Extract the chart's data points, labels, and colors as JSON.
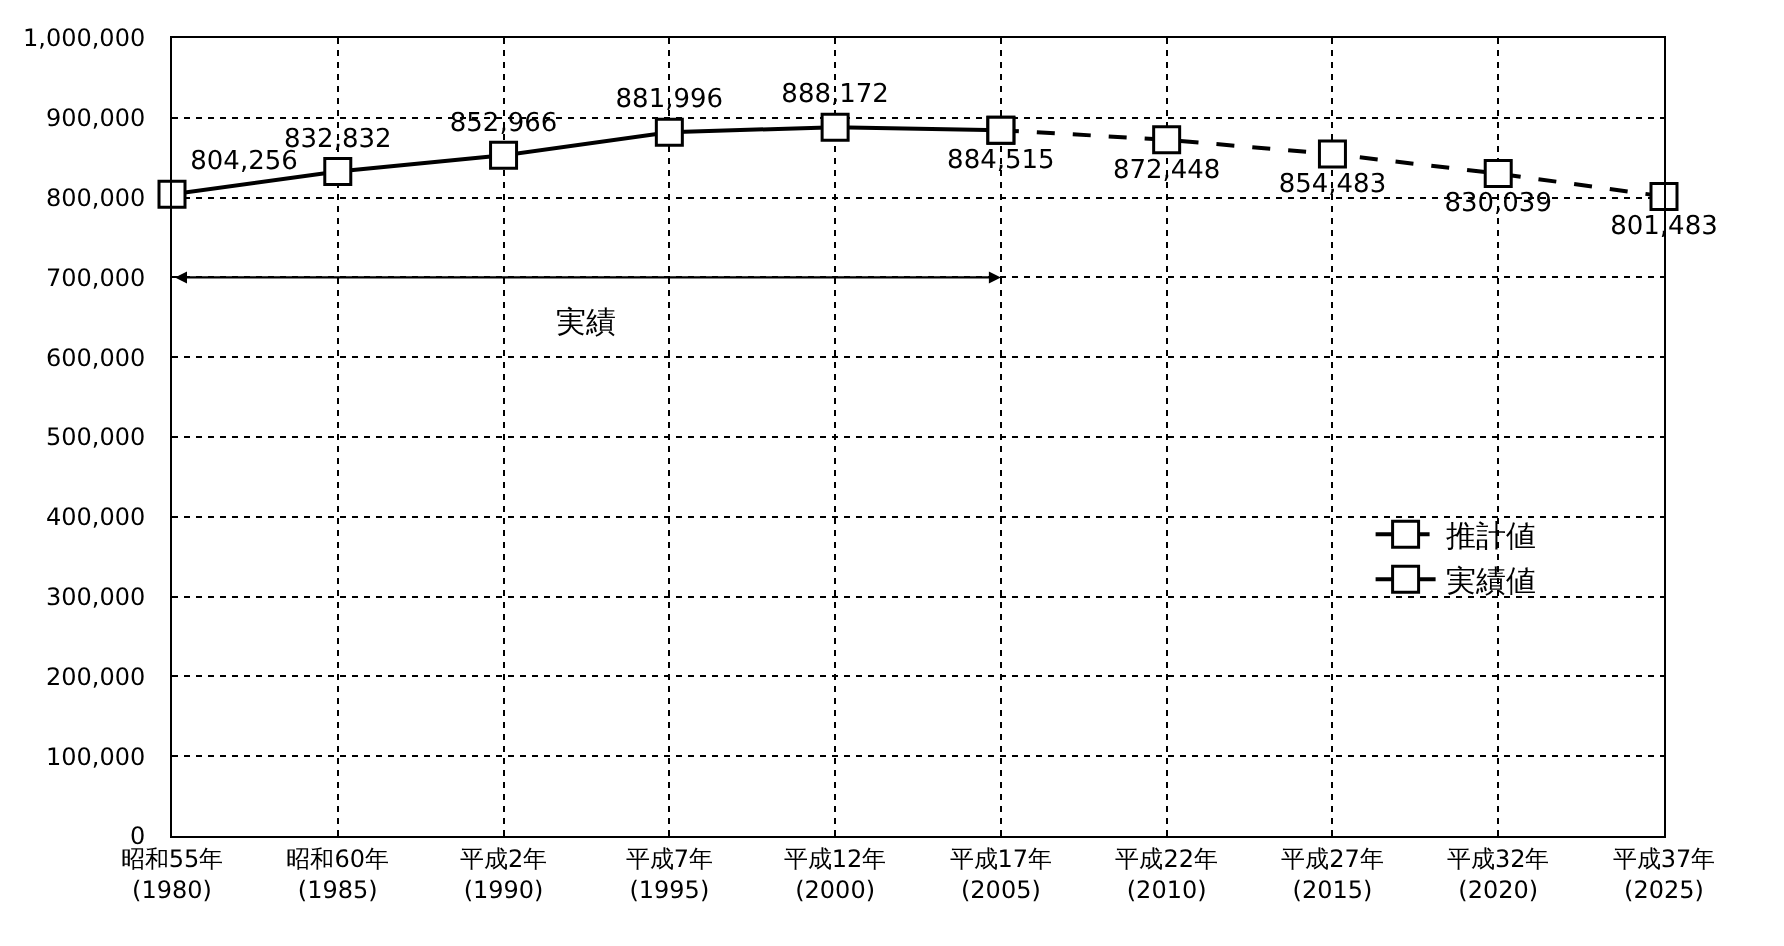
{
  "chart_data": {
    "type": "line",
    "categories": [
      "昭和55年\n(1980)",
      "昭和60年\n(1985)",
      "平成2年\n(1990)",
      "平成7年\n(1995)",
      "平成12年\n(2000)",
      "平成17年\n(2005)",
      "平成22年\n(2010)",
      "平成27年\n(2015)",
      "平成32年\n(2020)",
      "平成37年\n(2025)"
    ],
    "series": [
      {
        "name": "推計値",
        "color": "#000000",
        "line_style": "dashed",
        "values": [
          null,
          null,
          null,
          null,
          null,
          884515,
          872448,
          854483,
          830039,
          801483
        ],
        "value_labels": [
          null,
          null,
          null,
          null,
          null,
          null,
          "872,448",
          "854,483",
          "830,039",
          "801,483"
        ]
      },
      {
        "name": "実績値",
        "color": "#000000",
        "line_style": "solid",
        "values": [
          804256,
          832832,
          852966,
          881996,
          888172,
          884515,
          null,
          null,
          null,
          null
        ],
        "value_labels": [
          "804,256",
          "832,832",
          "852,966",
          "881,996",
          "888,172",
          "884,515",
          null,
          null,
          null,
          null
        ]
      }
    ],
    "annotations": [
      "実績"
    ],
    "ylim": [
      0,
      1000000
    ],
    "yticks": [
      {
        "value": 0,
        "label": "0"
      },
      {
        "value": 100000,
        "label": "100,000"
      },
      {
        "value": 200000,
        "label": "200,000"
      },
      {
        "value": 300000,
        "label": "300,000"
      },
      {
        "value": 400000,
        "label": "400,000"
      },
      {
        "value": 500000,
        "label": "500,000"
      },
      {
        "value": 600000,
        "label": "600,000"
      },
      {
        "value": 700000,
        "label": "700,000"
      },
      {
        "value": 800000,
        "label": "800,000"
      },
      {
        "value": 900000,
        "label": "900,000"
      },
      {
        "value": 1000000,
        "label": "1,000,000"
      }
    ],
    "grid": true,
    "legend": "right",
    "marker": "square"
  }
}
